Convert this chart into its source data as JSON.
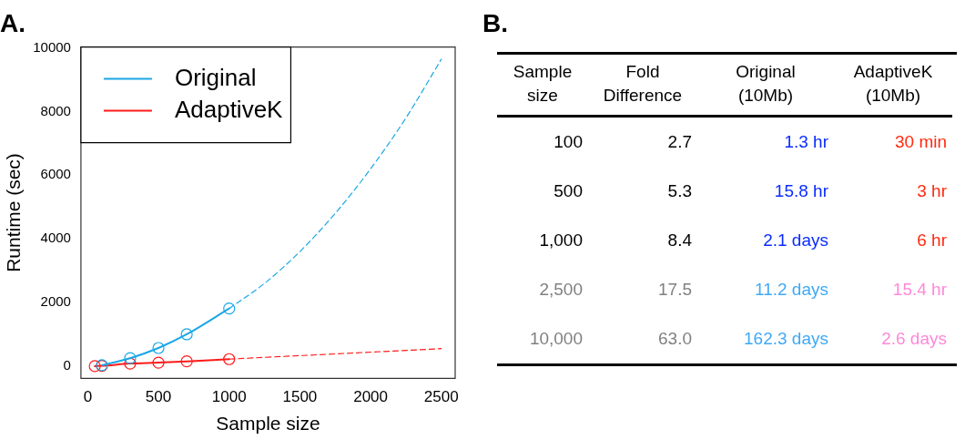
{
  "chart_data": [
    {
      "type": "line",
      "title": "A.",
      "xlabel": "Sample size",
      "ylabel": "Runtime (sec)",
      "xlim": [
        -48,
        2598
      ],
      "xticks": [
        0,
        500,
        1000,
        1500,
        2000,
        2500
      ],
      "ylim": [
        -386,
        10026
      ],
      "yticks": [
        0,
        2000,
        4000,
        6000,
        8000,
        10000
      ],
      "grid": false,
      "legend": "top left",
      "series": [
        {
          "name": "Original",
          "color": "#1aa7e6",
          "marker": "circle",
          "line_style": "solid",
          "x": [
            100,
            300,
            500,
            700,
            1000
          ],
          "values": [
            30,
            250,
            570,
            1000,
            1810
          ]
        },
        {
          "name": "AdaptiveK",
          "color": "#ff1a1a",
          "marker": "circle",
          "line_style": "solid",
          "x": [
            50,
            100,
            300,
            500,
            700,
            1000
          ],
          "values": [
            0,
            10,
            80,
            110,
            150,
            220
          ]
        },
        {
          "color": "#1aa7e6",
          "marker": "none",
          "line_style": "dashed",
          "x": [
            1000,
            1250,
            1500,
            1750,
            2000,
            2250,
            2500
          ],
          "values": [
            1810,
            2600,
            3600,
            4800,
            6200,
            7800,
            9640
          ]
        },
        {
          "color": "#ff1a1a",
          "marker": "none",
          "line_style": "dashed",
          "x": [
            1000,
            2500
          ],
          "values": [
            220,
            550
          ]
        }
      ]
    },
    {
      "type": "other",
      "title": "B.",
      "categories": [
        "Sample\nsize",
        "Fold\nDifference",
        "Original\n(10Mb)",
        "AdaptiveK\n(10Mb)"
      ],
      "annotations": [
        "100",
        "2.7",
        "1.3 hr",
        "30 min",
        "500",
        "5.3",
        "15.8 hr",
        "3 hr",
        "1,000",
        "8.4",
        "2.1 days",
        "6 hr",
        "2,500",
        "17.5",
        "11.2 days",
        "15.4 hr",
        "10,000",
        "63.0",
        "162.3 days",
        "2.6 days"
      ],
      "colors": [
        "#000000",
        "#000000",
        "#0a2cff",
        "#ff2a10",
        "#000000",
        "#000000",
        "#0a2cff",
        "#ff2a10",
        "#000000",
        "#000000",
        "#0a2cff",
        "#ff2a10",
        "#808080",
        "#808080",
        "#3fa9f5",
        "#ff88d8",
        "#808080",
        "#808080",
        "#3fa9f5",
        "#ff88d8"
      ]
    }
  ]
}
